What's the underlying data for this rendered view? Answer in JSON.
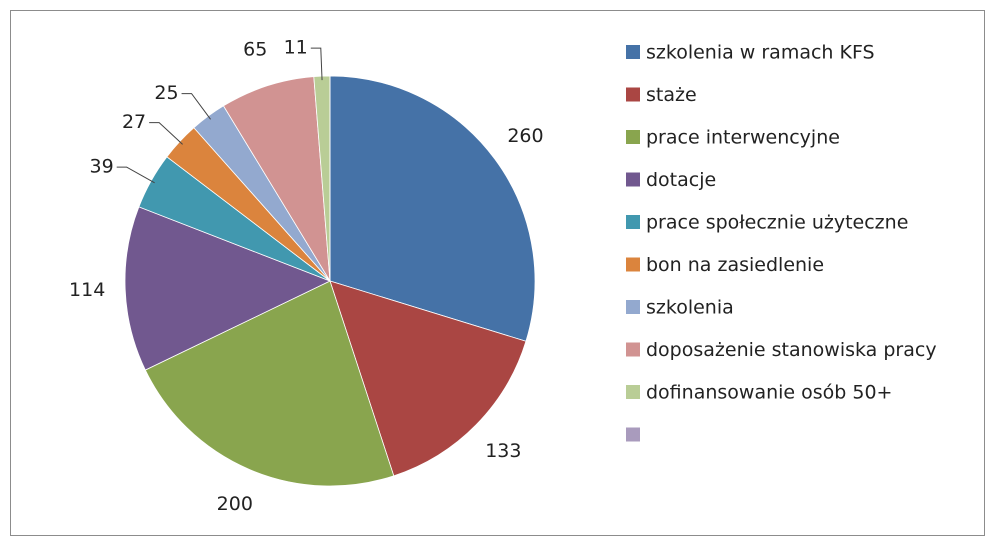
{
  "chart_data": {
    "type": "pie",
    "categories": [
      "szkolenia w ramach KFS",
      "staże",
      "prace interwencyjne",
      "dotacje",
      "prace społecznie użyteczne",
      "bon na zasiedlenie",
      "szkolenia",
      "doposażenie stanowiska pracy",
      "dofinansowanie osób 50+",
      null
    ],
    "values": [
      260,
      133,
      200,
      114,
      39,
      27,
      25,
      65,
      11,
      0
    ],
    "colors": [
      "#4572A7",
      "#AA4643",
      "#89A54E",
      "#71588F",
      "#4198AF",
      "#DB843D",
      "#93A9CF",
      "#D19392",
      "#B9CD96",
      "#A99BBD"
    ],
    "legend": "right"
  }
}
